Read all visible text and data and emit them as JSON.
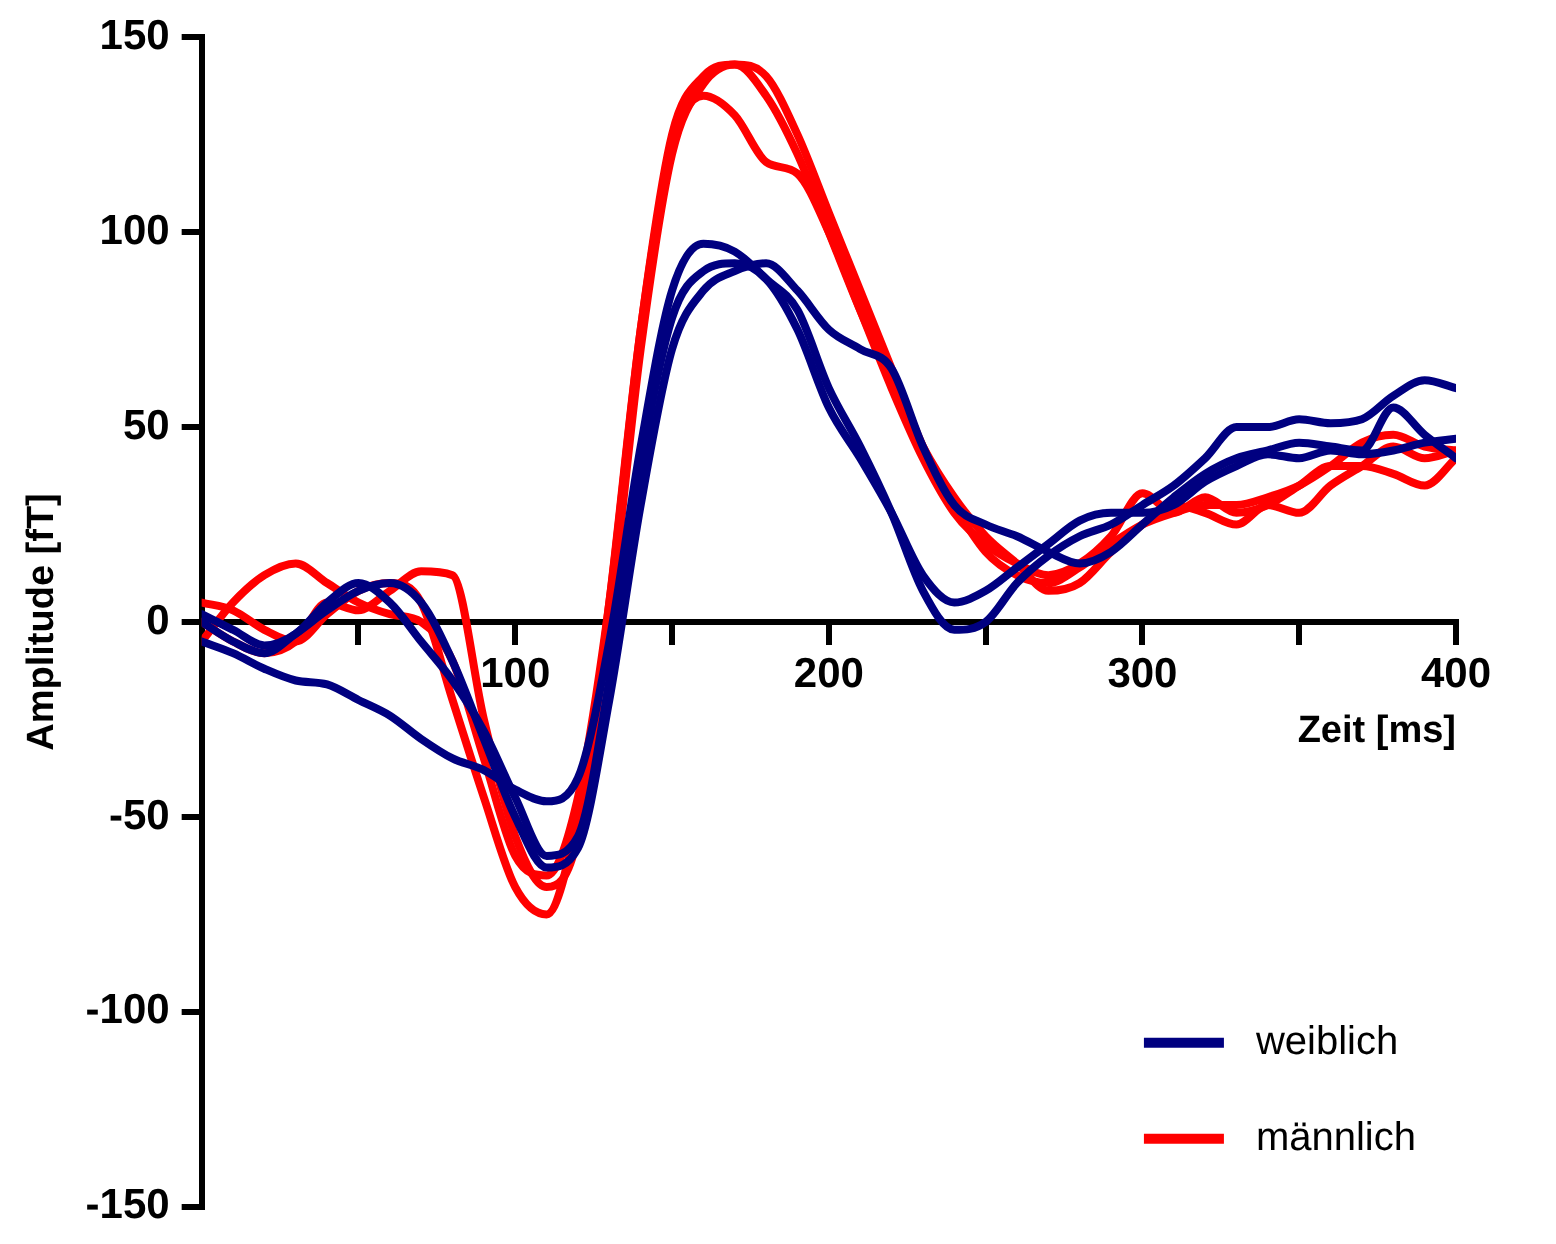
{
  "chart_data": {
    "type": "line",
    "xlabel": "Zeit [ms]",
    "ylabel": "Amplitude [fT]",
    "x": [
      0,
      10,
      20,
      30,
      40,
      50,
      60,
      70,
      80,
      90,
      100,
      110,
      120,
      130,
      140,
      150,
      160,
      170,
      180,
      190,
      200,
      210,
      220,
      230,
      240,
      250,
      260,
      270,
      280,
      290,
      300,
      310,
      320,
      330,
      340,
      350,
      360,
      370,
      380,
      390,
      400
    ],
    "series": [
      {
        "name": "weiblich",
        "color": "#000080",
        "values": [
          -5,
          -8,
          -12,
          -15,
          -16,
          -20,
          -24,
          -30,
          -35,
          -38,
          -43,
          -46,
          -40,
          -5,
          45,
          85,
          97,
          95,
          88,
          80,
          60,
          45,
          28,
          8,
          -2,
          0,
          10,
          17,
          22,
          25,
          30,
          35,
          42,
          50,
          50,
          52,
          51,
          52,
          58,
          62,
          60
        ]
      },
      {
        "color": "#000080",
        "values": [
          2,
          -2,
          -6,
          -3,
          5,
          10,
          5,
          -5,
          -15,
          -28,
          -45,
          -60,
          -55,
          -15,
          40,
          78,
          90,
          92,
          88,
          75,
          55,
          42,
          28,
          12,
          5,
          8,
          14,
          20,
          26,
          28,
          28,
          30,
          36,
          40,
          43,
          42,
          44,
          43,
          44,
          46,
          47
        ]
      },
      {
        "color": "#000080",
        "values": [
          0,
          -5,
          -8,
          -3,
          3,
          8,
          10,
          5,
          -10,
          -30,
          -50,
          -63,
          -58,
          -20,
          30,
          70,
          85,
          90,
          92,
          85,
          75,
          70,
          65,
          45,
          30,
          25,
          22,
          18,
          15,
          18,
          25,
          32,
          38,
          42,
          44,
          46,
          45,
          44,
          55,
          48,
          42
        ]
      },
      {
        "name": "männlich",
        "color": "#ff0000",
        "values": [
          5,
          3,
          -2,
          -5,
          2,
          8,
          10,
          5,
          -20,
          -45,
          -68,
          -75,
          -50,
          0,
          70,
          120,
          138,
          143,
          140,
          125,
          105,
          85,
          65,
          45,
          30,
          18,
          12,
          10,
          14,
          20,
          25,
          28,
          30,
          30,
          32,
          35,
          40,
          46,
          48,
          45,
          44
        ]
      },
      {
        "color": "#ff0000",
        "values": [
          -5,
          5,
          12,
          15,
          10,
          5,
          2,
          0,
          -10,
          -35,
          -60,
          -65,
          -45,
          5,
          75,
          125,
          140,
          143,
          135,
          120,
          100,
          80,
          62,
          45,
          32,
          22,
          15,
          8,
          10,
          18,
          25,
          30,
          28,
          25,
          30,
          28,
          35,
          40,
          45,
          42,
          44
        ]
      },
      {
        "color": "#ff0000",
        "values": [
          0,
          -5,
          -8,
          -5,
          5,
          3,
          8,
          13,
          12,
          -25,
          -55,
          -68,
          -55,
          5,
          75,
          122,
          135,
          130,
          118,
          115,
          100,
          80,
          60,
          42,
          28,
          20,
          15,
          12,
          15,
          22,
          33,
          28,
          32,
          28,
          30,
          35,
          40,
          40,
          38,
          35,
          42
        ]
      }
    ],
    "xlim": [
      0,
      400
    ],
    "xticks": [
      {
        "value": 50,
        "label": null
      },
      100,
      {
        "value": 150,
        "label": null
      },
      200,
      {
        "value": 250,
        "label": null
      },
      300,
      {
        "value": 350,
        "label": null
      },
      400
    ],
    "ylim": [
      -150,
      150
    ],
    "yticks": [
      -150,
      -100,
      -50,
      0,
      50,
      100,
      150
    ],
    "legend": "bottom right",
    "grid": false,
    "marker": "none",
    "line_style": "solid"
  }
}
